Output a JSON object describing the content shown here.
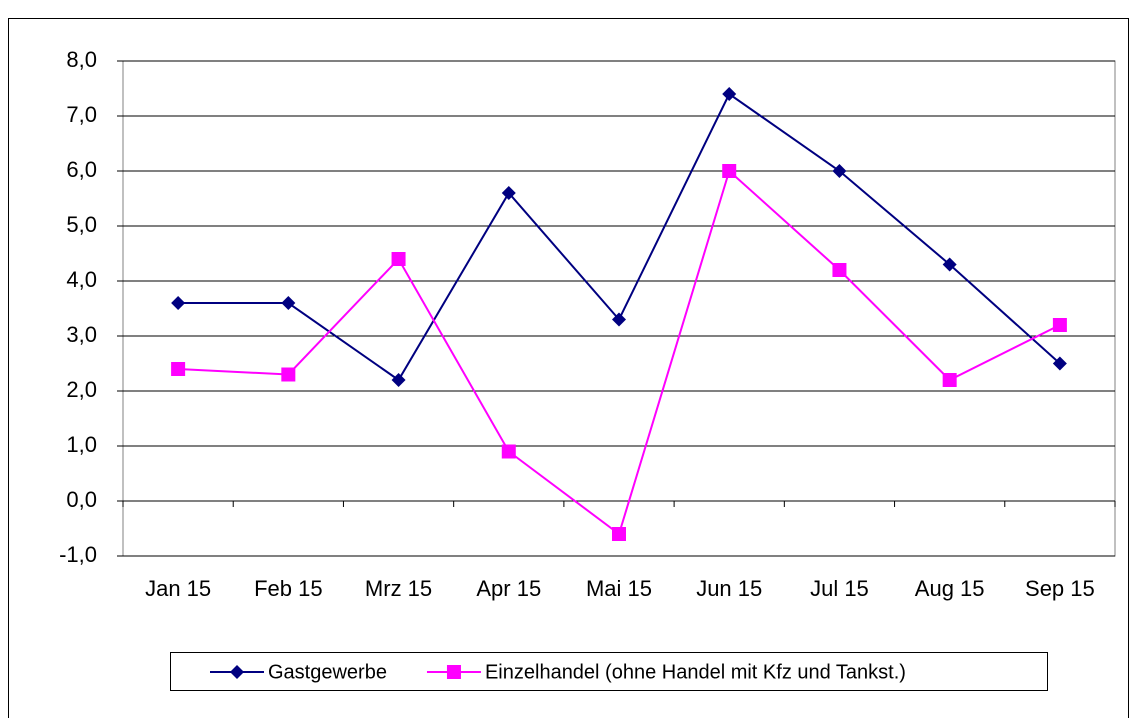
{
  "chart_data": {
    "type": "line",
    "categories": [
      "Jan 15",
      "Feb 15",
      "Mrz 15",
      "Apr 15",
      "Mai 15",
      "Jun 15",
      "Jul 15",
      "Aug 15",
      "Sep 15"
    ],
    "series": [
      {
        "name": "Gastgewerbe",
        "color": "#000080",
        "marker": "diamond",
        "values": [
          3.6,
          3.6,
          2.2,
          5.6,
          3.3,
          7.4,
          6.0,
          4.3,
          2.5
        ]
      },
      {
        "name": "Einzelhandel (ohne Handel mit Kfz und Tankst.)",
        "color": "#ff00ff",
        "marker": "square",
        "values": [
          2.4,
          2.3,
          4.4,
          0.9,
          -0.6,
          6.0,
          4.2,
          2.2,
          3.2
        ]
      }
    ],
    "ylim": [
      -1,
      8
    ],
    "yticks": [
      {
        "value": -1,
        "label": "-1,0"
      },
      {
        "value": 0,
        "label": "0,0"
      },
      {
        "value": 1,
        "label": "1,0"
      },
      {
        "value": 2,
        "label": "2,0"
      },
      {
        "value": 3,
        "label": "3,0"
      },
      {
        "value": 4,
        "label": "4,0"
      },
      {
        "value": 5,
        "label": "5,0"
      },
      {
        "value": 6,
        "label": "6,0"
      },
      {
        "value": 7,
        "label": "7,0"
      },
      {
        "value": 8,
        "label": "8,0"
      }
    ],
    "grid": true,
    "legend": "bottom"
  }
}
